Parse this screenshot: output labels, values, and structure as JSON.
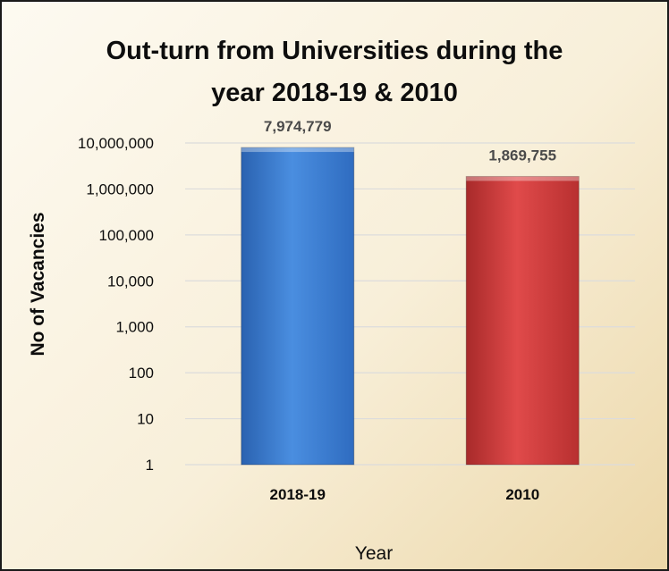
{
  "chart_data": {
    "type": "bar",
    "title_lines": [
      "Out-turn from Universities during the",
      "year 2018-19 & 2010"
    ],
    "xlabel": "Year",
    "ylabel": "No of Vacancies",
    "yscale": "log",
    "ylim": [
      1,
      10000000
    ],
    "yticks": [
      1,
      10,
      100,
      1000,
      10000,
      100000,
      1000000,
      10000000
    ],
    "ytick_labels": [
      "1",
      "10",
      "100",
      "1,000",
      "10,000",
      "100,000",
      "1,000,000",
      "10,000,000"
    ],
    "grid": true,
    "legend": "none",
    "categories": [
      "2018-19",
      "2010"
    ],
    "values": [
      7974779,
      1869755
    ],
    "data_labels": [
      "7,974,779",
      "1,869,755"
    ],
    "colors": [
      "#3f7fd2",
      "#d23f3f"
    ]
  }
}
